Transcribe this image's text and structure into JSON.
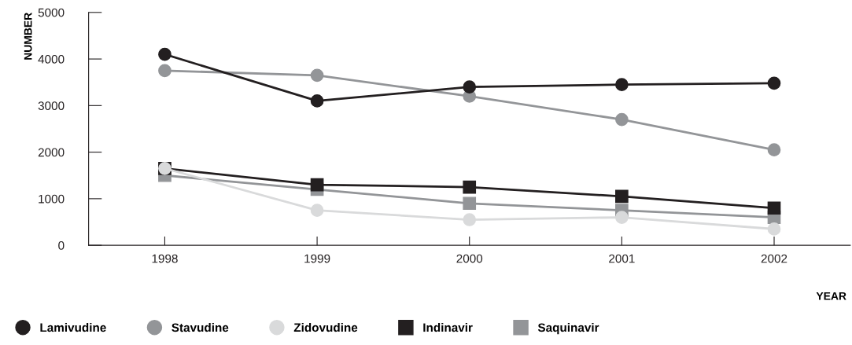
{
  "chart_data": {
    "type": "line",
    "xlabel": "YEAR",
    "ylabel": "NUMBER",
    "x": [
      1998,
      1999,
      2000,
      2001,
      2002
    ],
    "xlim": [
      1997.5,
      2002.5
    ],
    "xticks": [
      1998,
      1999,
      2000,
      2001,
      2002
    ],
    "ylim": [
      0,
      5000
    ],
    "yticks": [
      0,
      1000,
      2000,
      3000,
      4000,
      5000
    ],
    "grid": false,
    "legend": "bottom left",
    "line_style": "solid",
    "series": [
      {
        "name": "Lamivudine",
        "color": "#231f20",
        "marker": "circle",
        "values": [
          4100,
          3100,
          3400,
          3450,
          3480
        ]
      },
      {
        "name": "Stavudine",
        "color": "#939598",
        "marker": "circle",
        "values": [
          3750,
          3650,
          3200,
          2700,
          2050
        ]
      },
      {
        "name": "Zidovudine",
        "color": "#d9dadb",
        "marker": "circle",
        "values": [
          1650,
          750,
          550,
          600,
          350
        ]
      },
      {
        "name": "Indinavir",
        "color": "#231f20",
        "marker": "square",
        "values": [
          1650,
          1300,
          1250,
          1050,
          800
        ]
      },
      {
        "name": "Saquinavir",
        "color": "#939598",
        "marker": "square",
        "values": [
          1500,
          1200,
          900,
          750,
          600
        ]
      }
    ]
  }
}
